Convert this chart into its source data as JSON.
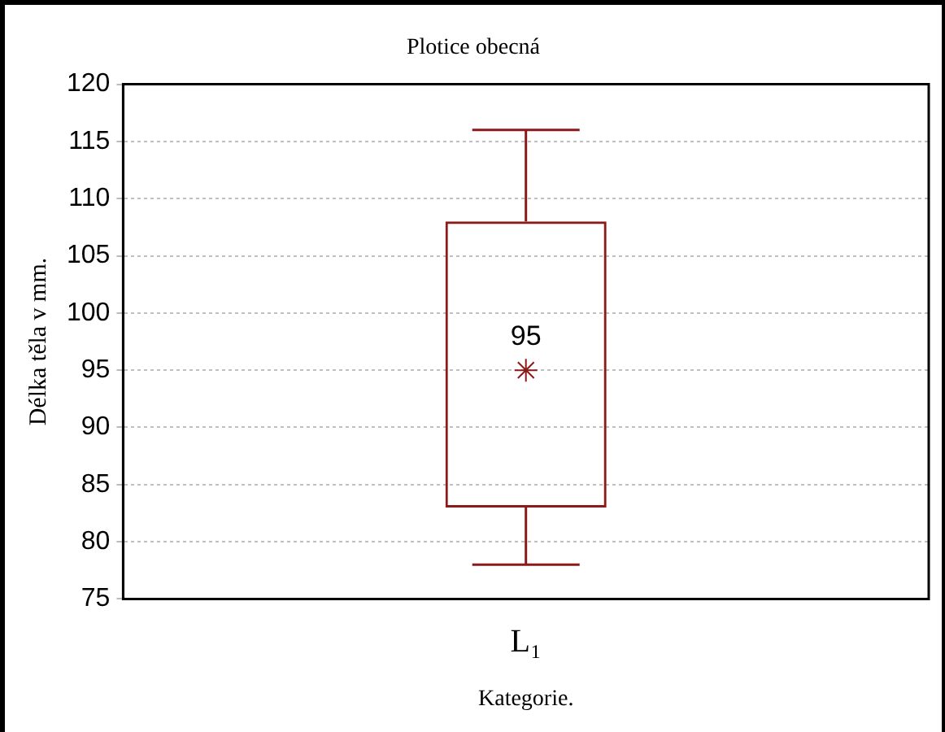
{
  "chart_data": {
    "type": "box",
    "title": "Plotice obecná",
    "xlabel": "Kategorie.",
    "ylabel": "Délka těla v mm.",
    "categories": [
      "L₁"
    ],
    "color": "#8b1a1a",
    "boxes": [
      {
        "low": 78,
        "q1": 83,
        "median": 95,
        "q3": 108,
        "high": 116
      }
    ],
    "annotations": [
      {
        "text": "95",
        "x": "L₁",
        "y": 95
      }
    ],
    "ylim": [
      75,
      120
    ],
    "yticks": [
      75,
      80,
      85,
      90,
      95,
      100,
      105,
      110,
      115,
      120
    ],
    "grid": "y",
    "marker": "star",
    "legend": false
  }
}
